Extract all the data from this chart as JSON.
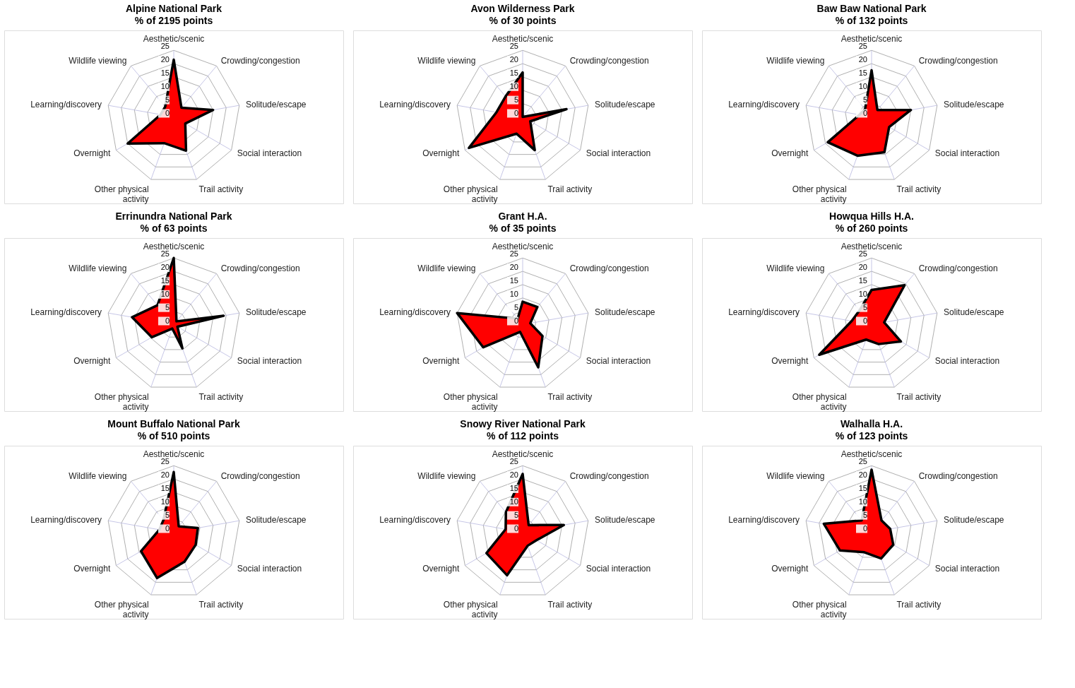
{
  "chart_data": [
    {
      "type": "radar",
      "title": "Alpine National Park",
      "subtitle": "% of 2195 points",
      "categories": [
        "Aesthetic/scenic",
        "Crowding/congestion",
        "Solitude/escape",
        "Social interaction",
        "Trail activity",
        "Other physical activity",
        "Overnight",
        "Learning/discovery",
        "Wildlife viewing"
      ],
      "series": [
        {
          "color": "#ff0000",
          "values": [
            21.5,
            4.5,
            15,
            5,
            13.5,
            10.5,
            20,
            5,
            5
          ]
        }
      ],
      "ylim": [
        0,
        25
      ],
      "yticks": [
        0,
        5,
        10,
        15,
        20,
        25
      ],
      "grid": true
    },
    {
      "type": "radar",
      "title": "Avon Wilderness Park",
      "subtitle": "% of 30 points",
      "categories": [
        "Aesthetic/scenic",
        "Crowding/congestion",
        "Solitude/escape",
        "Social interaction",
        "Trail activity",
        "Other physical activity",
        "Overnight",
        "Learning/discovery",
        "Wildlife viewing"
      ],
      "series": [
        {
          "color": "#ff0000",
          "values": [
            16.7,
            0,
            16.7,
            3.3,
            13.3,
            6.7,
            23.3,
            10,
            10
          ]
        }
      ],
      "ylim": [
        0,
        25
      ],
      "yticks": [
        0,
        5,
        10,
        15,
        20,
        25
      ],
      "grid": true
    },
    {
      "type": "radar",
      "title": "Baw Baw National Park",
      "subtitle": "% of 132 points",
      "categories": [
        "Aesthetic/scenic",
        "Crowding/congestion",
        "Solitude/escape",
        "Social interaction",
        "Trail activity",
        "Other physical activity",
        "Overnight",
        "Learning/discovery",
        "Wildlife viewing"
      ],
      "series": [
        {
          "color": "#ff0000",
          "values": [
            17.5,
            3.4,
            15,
            7.6,
            14.1,
            15.5,
            19,
            4.6,
            3.8
          ]
        }
      ],
      "ylim": [
        0,
        25
      ],
      "yticks": [
        0,
        5,
        10,
        15,
        20,
        25
      ],
      "grid": true
    },
    {
      "type": "radar",
      "title": "Errinundra National Park",
      "subtitle": "% of 63 points",
      "categories": [
        "Aesthetic/scenic",
        "Crowding/congestion",
        "Solitude/escape",
        "Social interaction",
        "Trail activity",
        "Other physical activity",
        "Overnight",
        "Learning/discovery",
        "Wildlife viewing"
      ],
      "series": [
        {
          "color": "#ff0000",
          "values": [
            25,
            1.6,
            19,
            1.6,
            9.5,
            1.6,
            9.5,
            15.9,
            9.5
          ]
        }
      ],
      "ylim": [
        0,
        25
      ],
      "yticks": [
        0,
        5,
        10,
        15,
        20,
        25
      ],
      "grid": true
    },
    {
      "type": "radar",
      "title": "Grant H.A.",
      "subtitle": "% of 35 points",
      "categories": [
        "Aesthetic/scenic",
        "Crowding/congestion",
        "Solitude/escape",
        "Social interaction",
        "Trail activity",
        "Other physical activity",
        "Overnight",
        "Learning/discovery",
        "Wildlife viewing"
      ],
      "series": [
        {
          "color": "#ff0000",
          "values": [
            8.6,
            8.6,
            2.9,
            8.6,
            17.1,
            2.9,
            17.1,
            25,
            2.9
          ]
        }
      ],
      "ylim": [
        0,
        25
      ],
      "yticks": [
        0,
        5,
        10,
        15,
        20,
        25
      ],
      "grid": true
    },
    {
      "type": "radar",
      "title": "Howqua Hills H.A.",
      "subtitle": "% of 260 points",
      "categories": [
        "Aesthetic/scenic",
        "Crowding/congestion",
        "Solitude/escape",
        "Social interaction",
        "Trail activity",
        "Other physical activity",
        "Overnight",
        "Learning/discovery",
        "Wildlife viewing"
      ],
      "series": [
        {
          "color": "#ff0000",
          "values": [
            13,
            19.3,
            4.8,
            12.7,
            7.8,
            6,
            22.7,
            7.6,
            7
          ]
        }
      ],
      "ylim": [
        0,
        25
      ],
      "yticks": [
        0,
        5,
        10,
        15,
        20,
        25
      ],
      "grid": true
    },
    {
      "type": "radar",
      "title": "Mount Buffalo National Park",
      "subtitle": "% of 510 points",
      "categories": [
        "Aesthetic/scenic",
        "Crowding/congestion",
        "Solitude/escape",
        "Social interaction",
        "Trail activity",
        "Other physical activity",
        "Overnight",
        "Learning/discovery",
        "Wildlife viewing"
      ],
      "series": [
        {
          "color": "#ff0000",
          "values": [
            22.6,
            2.9,
            9.2,
            9.5,
            11.8,
            18.3,
            14.2,
            5.5,
            6
          ]
        }
      ],
      "ylim": [
        0,
        25
      ],
      "yticks": [
        0,
        5,
        10,
        15,
        20,
        25
      ],
      "grid": true
    },
    {
      "type": "radar",
      "title": "Snowy River National Park",
      "subtitle": "% of 112 points",
      "categories": [
        "Aesthetic/scenic",
        "Crowding/congestion",
        "Solitude/escape",
        "Social interaction",
        "Trail activity",
        "Other physical activity",
        "Overnight",
        "Learning/discovery",
        "Wildlife viewing"
      ],
      "series": [
        {
          "color": "#ff0000",
          "values": [
            21.9,
            3.5,
            15.7,
            6,
            5.4,
            17.2,
            15.7,
            6.5,
            9.8
          ]
        }
      ],
      "ylim": [
        0,
        25
      ],
      "yticks": [
        0,
        5,
        10,
        15,
        20,
        25
      ],
      "grid": true
    },
    {
      "type": "radar",
      "title": "Walhalla H.A.",
      "subtitle": "% of 123 points",
      "categories": [
        "Aesthetic/scenic",
        "Crowding/congestion",
        "Solitude/escape",
        "Social interaction",
        "Trail activity",
        "Other physical activity",
        "Overnight",
        "Learning/discovery",
        "Wildlife viewing"
      ],
      "series": [
        {
          "color": "#ff0000",
          "values": [
            23.5,
            5.8,
            7.1,
            9.4,
            10.5,
            8,
            13.7,
            18.2,
            5.8
          ]
        }
      ],
      "ylim": [
        0,
        25
      ],
      "yticks": [
        0,
        5,
        10,
        15,
        20,
        25
      ],
      "grid": true
    }
  ]
}
